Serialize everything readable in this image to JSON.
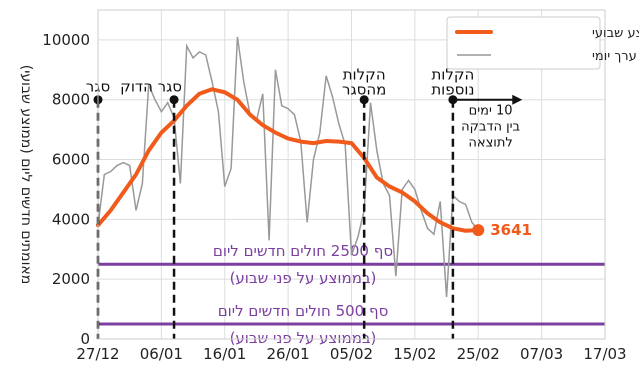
{
  "chart_data": {
    "type": "line",
    "ylabel": "מאומתים חדשים ליום (ממוצע שבועי)",
    "xlabel": "",
    "xlim": [
      "2020-12-27",
      "2021-03-17"
    ],
    "ylim": [
      0,
      11000
    ],
    "grid": true,
    "legend_position": "top-right",
    "x_ticks": [
      "27/12",
      "06/01",
      "16/01",
      "26/01",
      "05/02",
      "15/02",
      "25/02",
      "07/03",
      "17/03"
    ],
    "y_ticks": [
      0,
      2000,
      4000,
      6000,
      8000,
      10000
    ],
    "series": [
      {
        "name": "ממוצע שבועי",
        "color": "#f05a1a",
        "x": [
          "2020-12-27",
          "2020-12-29",
          "2020-12-31",
          "2021-01-02",
          "2021-01-04",
          "2021-01-06",
          "2021-01-08",
          "2021-01-10",
          "2021-01-12",
          "2021-01-14",
          "2021-01-16",
          "2021-01-18",
          "2021-01-20",
          "2021-01-22",
          "2021-01-24",
          "2021-01-26",
          "2021-01-28",
          "2021-01-30",
          "2021-02-01",
          "2021-02-03",
          "2021-02-05",
          "2021-02-07",
          "2021-02-09",
          "2021-02-11",
          "2021-02-13",
          "2021-02-15",
          "2021-02-17",
          "2021-02-19",
          "2021-02-21",
          "2021-02-23",
          "2021-02-25"
        ],
        "y": [
          3800,
          4300,
          4900,
          5500,
          6300,
          6900,
          7300,
          7800,
          8200,
          8350,
          8250,
          8000,
          7500,
          7150,
          6900,
          6700,
          6600,
          6550,
          6620,
          6600,
          6550,
          6050,
          5400,
          5100,
          4900,
          4600,
          4200,
          3900,
          3700,
          3620,
          3641
        ]
      },
      {
        "name": "ערך יומי",
        "color": "#999999",
        "x": [
          "2020-12-27",
          "2020-12-28",
          "2020-12-29",
          "2020-12-30",
          "2020-12-31",
          "2021-01-01",
          "2021-01-02",
          "2021-01-03",
          "2021-01-04",
          "2021-01-05",
          "2021-01-06",
          "2021-01-07",
          "2021-01-08",
          "2021-01-09",
          "2021-01-10",
          "2021-01-11",
          "2021-01-12",
          "2021-01-13",
          "2021-01-14",
          "2021-01-15",
          "2021-01-16",
          "2021-01-17",
          "2021-01-18",
          "2021-01-19",
          "2021-01-20",
          "2021-01-21",
          "2021-01-22",
          "2021-01-23",
          "2021-01-24",
          "2021-01-25",
          "2021-01-26",
          "2021-01-27",
          "2021-01-28",
          "2021-01-29",
          "2021-01-30",
          "2021-01-31",
          "2021-02-01",
          "2021-02-02",
          "2021-02-03",
          "2021-02-04",
          "2021-02-05",
          "2021-02-06",
          "2021-02-07",
          "2021-02-08",
          "2021-02-09",
          "2021-02-10",
          "2021-02-11",
          "2021-02-12",
          "2021-02-13",
          "2021-02-14",
          "2021-02-15",
          "2021-02-16",
          "2021-02-17",
          "2021-02-18",
          "2021-02-19",
          "2021-02-20",
          "2021-02-21",
          "2021-02-22",
          "2021-02-23",
          "2021-02-24",
          "2021-02-25"
        ],
        "y": [
          3800,
          5500,
          5600,
          5800,
          5900,
          5800,
          4300,
          5200,
          8500,
          8000,
          7600,
          7900,
          7400,
          5200,
          9800,
          9400,
          9600,
          9500,
          8600,
          7600,
          5100,
          5700,
          10100,
          8600,
          7500,
          7300,
          8200,
          3300,
          9000,
          7800,
          7700,
          7500,
          6600,
          3900,
          6000,
          6900,
          8800,
          8100,
          7200,
          6500,
          2800,
          3400,
          4300,
          7900,
          6300,
          5200,
          4800,
          2100,
          5000,
          5300,
          5000,
          4300,
          3700,
          3500,
          4600,
          1400,
          4800,
          4600,
          4500,
          3900,
          3641
        ]
      }
    ],
    "thresholds": [
      {
        "value": 2500,
        "color": "#7b3fa0",
        "label_line1": "סף 2500 חולים חדשים ליום",
        "label_line2": "(בממוצע על פני שבוע)"
      },
      {
        "value": 500,
        "color": "#7b3fa0",
        "label_line1": "סף 500 חולים חדשים ליום",
        "label_line2": "(בממוצע על פני שבוע)"
      }
    ],
    "events": [
      {
        "date": "2020-12-27",
        "y": 8000,
        "label_line1": "סגר",
        "label_line2": ""
      },
      {
        "date": "2021-01-08",
        "y": 8000,
        "label_line1": "סגר הדוק",
        "label_line2": ""
      },
      {
        "date": "2021-02-07",
        "y": 8000,
        "label_line1": "הקלות",
        "label_line2": "מהסגר"
      },
      {
        "date": "2021-02-21",
        "y": 8000,
        "label_line1": "הקלות",
        "label_line2": "נוספות"
      }
    ],
    "arrow_note": {
      "from": "2021-02-21",
      "to": "2021-03-03",
      "y": 8000,
      "lines": [
        "10 ימים",
        "בין הדבקה",
        "לתוצאה"
      ]
    },
    "last_value_label": "3641"
  }
}
